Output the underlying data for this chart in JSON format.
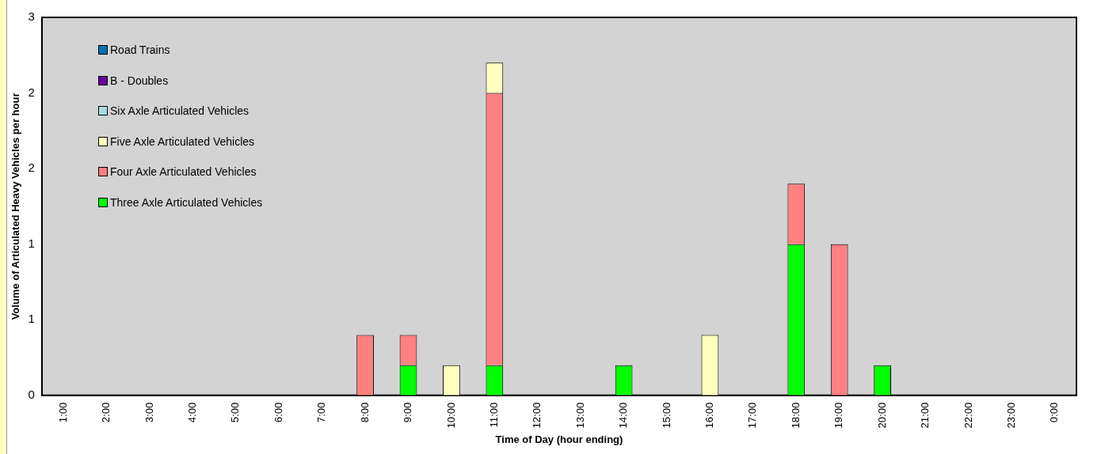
{
  "chart_data": {
    "type": "bar",
    "stacked": true,
    "xlabel": "Time of Day (hour ending)",
    "ylabel": "Volume of Articulated Heavy Vehicles per hour",
    "categories": [
      "1:00",
      "2:00",
      "3:00",
      "4:00",
      "5:00",
      "6:00",
      "7:00",
      "8:00",
      "9:00",
      "10:00",
      "11:00",
      "12:00",
      "13:00",
      "14:00",
      "15:00",
      "16:00",
      "17:00",
      "18:00",
      "19:00",
      "20:00",
      "21:00",
      "22:00",
      "23:00",
      "0:00"
    ],
    "series": [
      {
        "name": "Three Axle Articulated Vehicles",
        "color": "#00ff00",
        "values": [
          0,
          0,
          0,
          0,
          0,
          0,
          0,
          0,
          0.24,
          0,
          0.24,
          0,
          0,
          0.24,
          0,
          0,
          0,
          1.2,
          0,
          0.24,
          0,
          0,
          0,
          0
        ]
      },
      {
        "name": "Four Axle Articulated Vehicles",
        "color": "#ff8080",
        "values": [
          0,
          0,
          0,
          0,
          0,
          0,
          0,
          0.48,
          0.24,
          0,
          2.16,
          0,
          0,
          0,
          0,
          0,
          0,
          0.48,
          1.2,
          0,
          0,
          0,
          0,
          0
        ]
      },
      {
        "name": "Five Axle Articulated Vehicles",
        "color": "#ffffc0",
        "values": [
          0,
          0,
          0,
          0,
          0,
          0,
          0,
          0,
          0,
          0.24,
          0.24,
          0,
          0,
          0,
          0,
          0.48,
          0,
          0,
          0,
          0,
          0,
          0,
          0,
          0
        ]
      },
      {
        "name": "Six Axle Articulated Vehicles",
        "color": "#a6e0e0",
        "values": [
          0,
          0,
          0,
          0,
          0,
          0,
          0,
          0,
          0,
          0,
          0,
          0,
          0,
          0,
          0,
          0,
          0,
          0,
          0,
          0,
          0,
          0,
          0,
          0
        ]
      },
      {
        "name": "B - Doubles",
        "color": "#660099",
        "values": [
          0,
          0,
          0,
          0,
          0,
          0,
          0,
          0,
          0,
          0,
          0,
          0,
          0,
          0,
          0,
          0,
          0,
          0,
          0,
          0,
          0,
          0,
          0,
          0
        ]
      },
      {
        "name": "Road Trains",
        "color": "#0070b0",
        "values": [
          0,
          0,
          0,
          0,
          0,
          0,
          0,
          0,
          0,
          0,
          0,
          0,
          0,
          0,
          0,
          0,
          0,
          0,
          0,
          0,
          0,
          0,
          0,
          0
        ]
      }
    ],
    "ylim": [
      0,
      3
    ],
    "yticks": [
      0,
      {
        "value": 0.6,
        "label": "1"
      },
      {
        "value": 1.2,
        "label": "1"
      },
      {
        "value": 1.8,
        "label": "2"
      },
      {
        "value": 2.4,
        "label": "2"
      },
      3
    ],
    "grid": false,
    "legend": "top left"
  }
}
